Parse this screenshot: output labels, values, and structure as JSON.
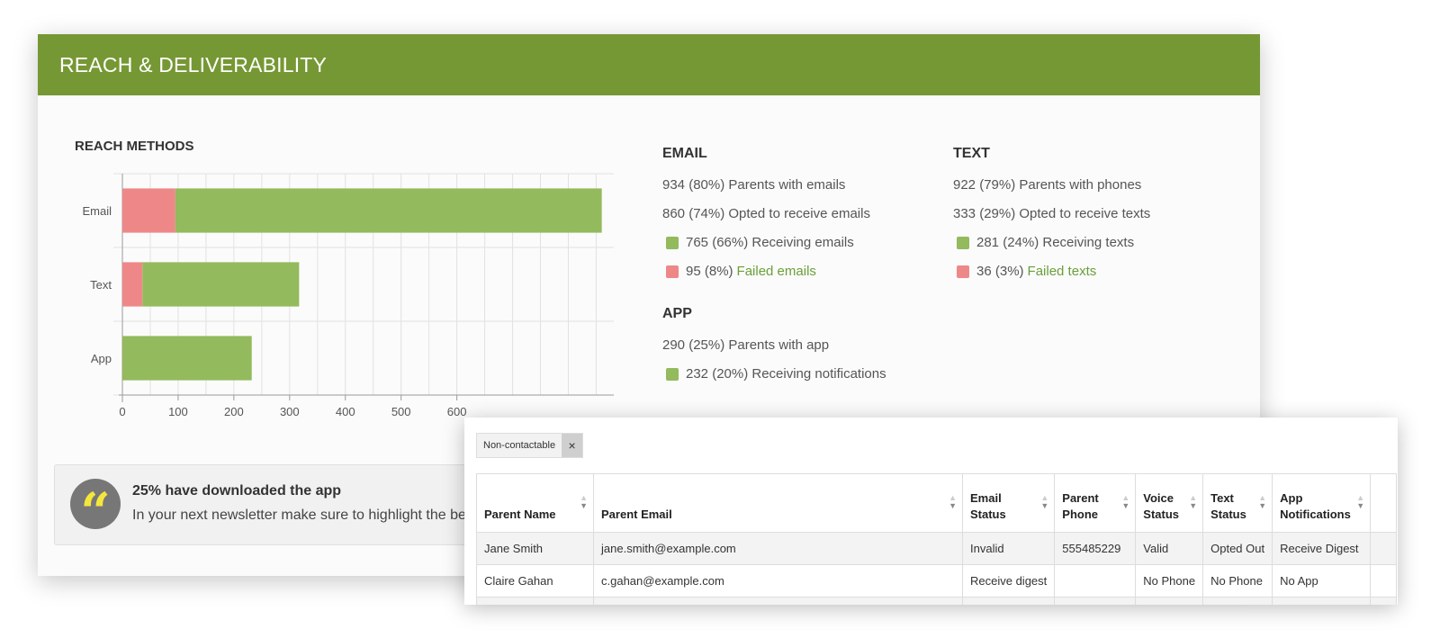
{
  "card": {
    "title": "REACH & DELIVERABILITY"
  },
  "reach_methods": {
    "title": "REACH METHODS"
  },
  "chart_data": {
    "type": "bar",
    "orientation": "horizontal",
    "stacked": true,
    "categories": [
      "Email",
      "Text",
      "App"
    ],
    "series": [
      {
        "name": "Failed",
        "values": [
          95,
          36,
          0
        ],
        "color": "#ee8888"
      },
      {
        "name": "Receiving",
        "values": [
          765,
          281,
          232
        ],
        "color": "#93ba5c"
      }
    ],
    "xticks": [
      0,
      100,
      200,
      300,
      400,
      500,
      600
    ],
    "xlim": [
      0,
      930
    ],
    "grid": true
  },
  "email": {
    "title": "EMAIL",
    "line1": "934 (80%) Parents with emails",
    "line2": "860 (74%) Opted to receive emails",
    "receiving": "765 (66%) Receiving emails",
    "failed_count": "95 (8%)",
    "failed_link": "Failed emails"
  },
  "text": {
    "title": "TEXT",
    "line1": "922 (79%) Parents with phones",
    "line2": "333 (29%) Opted to receive texts",
    "receiving": "281 (24%) Receiving texts",
    "failed_count": "36 (3%)",
    "failed_link": "Failed texts"
  },
  "app": {
    "title": "APP",
    "line1": "290 (25%) Parents with app",
    "receiving": "232 (20%) Receiving notifications"
  },
  "tip": {
    "icon": "quote-icon",
    "title": "25% have downloaded the app",
    "text": "In your next newsletter make sure to highlight the be"
  },
  "filter": {
    "chip_label": "Non-contactable",
    "close_symbol": "×"
  },
  "table": {
    "headers": [
      [
        "Parent Name"
      ],
      [
        "Parent Email"
      ],
      [
        "Email",
        "Status"
      ],
      [
        "Parent",
        "Phone"
      ],
      [
        "Voice",
        "Status"
      ],
      [
        "Text",
        "Status"
      ],
      [
        "App",
        "Notifications"
      ]
    ],
    "rows": [
      [
        "Jane Smith",
        "jane.smith@example.com",
        "Invalid",
        "555485229",
        "Valid",
        "Opted Out",
        "Receive Digest"
      ],
      [
        "Claire Gahan",
        "c.gahan@example.com",
        "Receive digest",
        "",
        "No Phone",
        "No Phone",
        "No App"
      ],
      [
        "",
        "",
        "",
        "",
        "",
        "",
        ""
      ]
    ]
  }
}
